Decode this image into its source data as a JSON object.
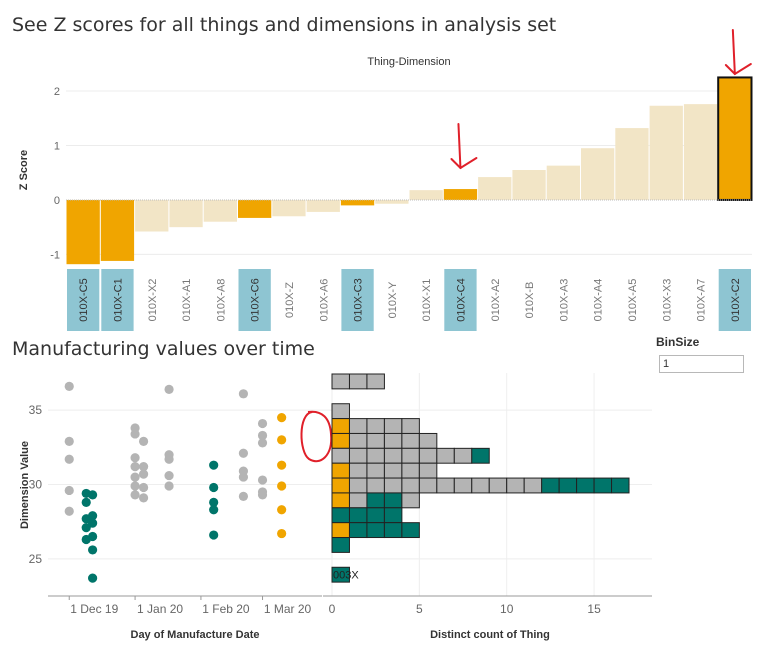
{
  "page": {
    "title_top": "See Z scores for all things and dimensions in analysis set",
    "title_bottom": "Manufacturing values over time",
    "binsize_label": "BinSize",
    "binsize_value": "1",
    "dot_mark_label": "003X"
  },
  "colors": {
    "highlight": "#f0a500",
    "light": "#f2e5c6",
    "teal": "#00756a",
    "grey": "#b4b4b4",
    "tile_blue": "#8ec5d2",
    "annotation_red": "#e0202a"
  },
  "chart_data": [
    {
      "type": "bar",
      "title": "Thing-Dimension",
      "ylabel": "Z Score",
      "ylim": [
        -1.25,
        2.35
      ],
      "yticks": [
        -1,
        0,
        1,
        2
      ],
      "categories": [
        "010X-C5",
        "010X-C1",
        "010X-X2",
        "010X-A1",
        "010X-A8",
        "010X-C6",
        "010X-Z",
        "010X-A6",
        "010X-C3",
        "010X-Y",
        "010X-X1",
        "010X-C4",
        "010X-A2",
        "010X-B",
        "010X-A3",
        "010X-A4",
        "010X-A5",
        "010X-X3",
        "010X-A7",
        "010X-C2"
      ],
      "values": [
        -1.18,
        -1.12,
        -0.58,
        -0.5,
        -0.4,
        -0.33,
        -0.3,
        -0.22,
        -0.1,
        -0.07,
        0.18,
        0.2,
        0.42,
        0.55,
        0.63,
        0.95,
        1.32,
        1.73,
        1.76,
        2.25
      ],
      "highlighted": [
        true,
        true,
        false,
        false,
        false,
        true,
        false,
        false,
        true,
        false,
        false,
        true,
        false,
        false,
        false,
        false,
        false,
        false,
        false,
        true
      ],
      "bordered": "010X-C2",
      "annotation_arrows": [
        "010X-C4",
        "010X-C2"
      ]
    },
    {
      "type": "scatter",
      "xlabel": "Day of Manufacture Date",
      "ylabel": "Dimension Value",
      "ylim": [
        22.5,
        37.5
      ],
      "yticks": [
        25,
        30,
        35
      ],
      "xticks": [
        "1 Dec 19",
        "1 Jan 20",
        "1 Feb 20",
        "1 Mar 20"
      ],
      "xlim": [
        "2019-11-21",
        "2020-03-29"
      ],
      "series": [
        {
          "color": "grey",
          "points": [
            [
              "2019-12-01",
              36.6
            ],
            [
              "2019-12-01",
              32.9
            ],
            [
              "2019-12-01",
              31.7
            ],
            [
              "2019-12-01",
              29.6
            ],
            [
              "2019-12-01",
              28.2
            ],
            [
              "2020-01-01",
              33.8
            ],
            [
              "2020-01-01",
              33.4
            ],
            [
              "2020-01-01",
              31.8
            ],
            [
              "2020-01-01",
              31.2
            ],
            [
              "2020-01-01",
              30.5
            ],
            [
              "2020-01-01",
              29.9
            ],
            [
              "2020-01-01",
              29.3
            ],
            [
              "2020-01-05",
              32.9
            ],
            [
              "2020-01-05",
              31.2
            ],
            [
              "2020-01-05",
              30.7
            ],
            [
              "2020-01-05",
              29.8
            ],
            [
              "2020-01-05",
              29.1
            ],
            [
              "2020-01-17",
              36.4
            ],
            [
              "2020-01-17",
              32.0
            ],
            [
              "2020-01-17",
              31.7
            ],
            [
              "2020-01-17",
              30.6
            ],
            [
              "2020-01-17",
              29.9
            ],
            [
              "2020-02-21",
              36.1
            ],
            [
              "2020-02-21",
              32.1
            ],
            [
              "2020-02-21",
              30.9
            ],
            [
              "2020-02-21",
              30.5
            ],
            [
              "2020-02-21",
              29.2
            ],
            [
              "2020-03-01",
              33.3
            ],
            [
              "2020-03-01",
              30.3
            ],
            [
              "2020-03-01",
              29.5
            ],
            [
              "2020-03-01",
              29.3
            ],
            [
              "2020-03-01",
              34.1
            ],
            [
              "2020-03-01",
              32.8
            ]
          ]
        },
        {
          "color": "teal",
          "points": [
            [
              "2019-12-09",
              29.4
            ],
            [
              "2019-12-09",
              28.8
            ],
            [
              "2019-12-09",
              27.7
            ],
            [
              "2019-12-09",
              27.1
            ],
            [
              "2019-12-09",
              26.3
            ],
            [
              "2019-12-12",
              29.3
            ],
            [
              "2019-12-12",
              27.9
            ],
            [
              "2019-12-12",
              27.4
            ],
            [
              "2019-12-12",
              26.5
            ],
            [
              "2019-12-12",
              25.6
            ],
            [
              "2019-12-12",
              23.7
            ],
            [
              "2020-02-07",
              31.3
            ],
            [
              "2020-02-07",
              29.8
            ],
            [
              "2020-02-07",
              28.8
            ],
            [
              "2020-02-07",
              28.3
            ],
            [
              "2020-02-07",
              26.6
            ]
          ]
        },
        {
          "color": "highlight",
          "points": [
            [
              "2020-03-10",
              34.5
            ],
            [
              "2020-03-10",
              33.0
            ],
            [
              "2020-03-10",
              31.3
            ],
            [
              "2020-03-10",
              29.9
            ],
            [
              "2020-03-10",
              28.3
            ],
            [
              "2020-03-10",
              26.7
            ]
          ]
        }
      ],
      "annotation_circle": "highlight points at 33.0–34.5"
    },
    {
      "type": "bar",
      "orientation": "horizontal",
      "xlabel": "Distinct count of Thing",
      "xlim": [
        -0.5,
        17.8
      ],
      "xticks": [
        0,
        5,
        10,
        15
      ],
      "bin_size": 1,
      "bins": [
        {
          "y": 37,
          "cells": [
            "grey",
            "grey",
            "grey"
          ]
        },
        {
          "y": 35,
          "cells": [
            "grey"
          ]
        },
        {
          "y": 34,
          "cells": [
            "highlight",
            "grey",
            "grey",
            "grey",
            "grey"
          ]
        },
        {
          "y": 33,
          "cells": [
            "highlight",
            "grey",
            "grey",
            "grey",
            "grey",
            "grey"
          ]
        },
        {
          "y": 32,
          "cells": [
            "grey",
            "grey",
            "grey",
            "grey",
            "grey",
            "grey",
            "grey",
            "grey",
            "teal"
          ]
        },
        {
          "y": 31,
          "cells": [
            "highlight",
            "grey",
            "grey",
            "grey",
            "grey",
            "grey"
          ]
        },
        {
          "y": 30,
          "cells": [
            "highlight",
            "grey",
            "grey",
            "grey",
            "grey",
            "grey",
            "grey",
            "grey",
            "grey",
            "grey",
            "grey",
            "grey",
            "teal",
            "teal",
            "teal",
            "teal",
            "teal"
          ]
        },
        {
          "y": 29,
          "cells": [
            "highlight",
            "grey",
            "teal",
            "teal",
            "grey"
          ]
        },
        {
          "y": 28,
          "cells": [
            "teal",
            "teal",
            "teal",
            "teal"
          ]
        },
        {
          "y": 27,
          "cells": [
            "highlight",
            "teal",
            "teal",
            "teal",
            "teal"
          ]
        },
        {
          "y": 26,
          "cells": [
            "teal"
          ]
        },
        {
          "y": 24,
          "cells": [
            "teal"
          ]
        }
      ]
    }
  ]
}
